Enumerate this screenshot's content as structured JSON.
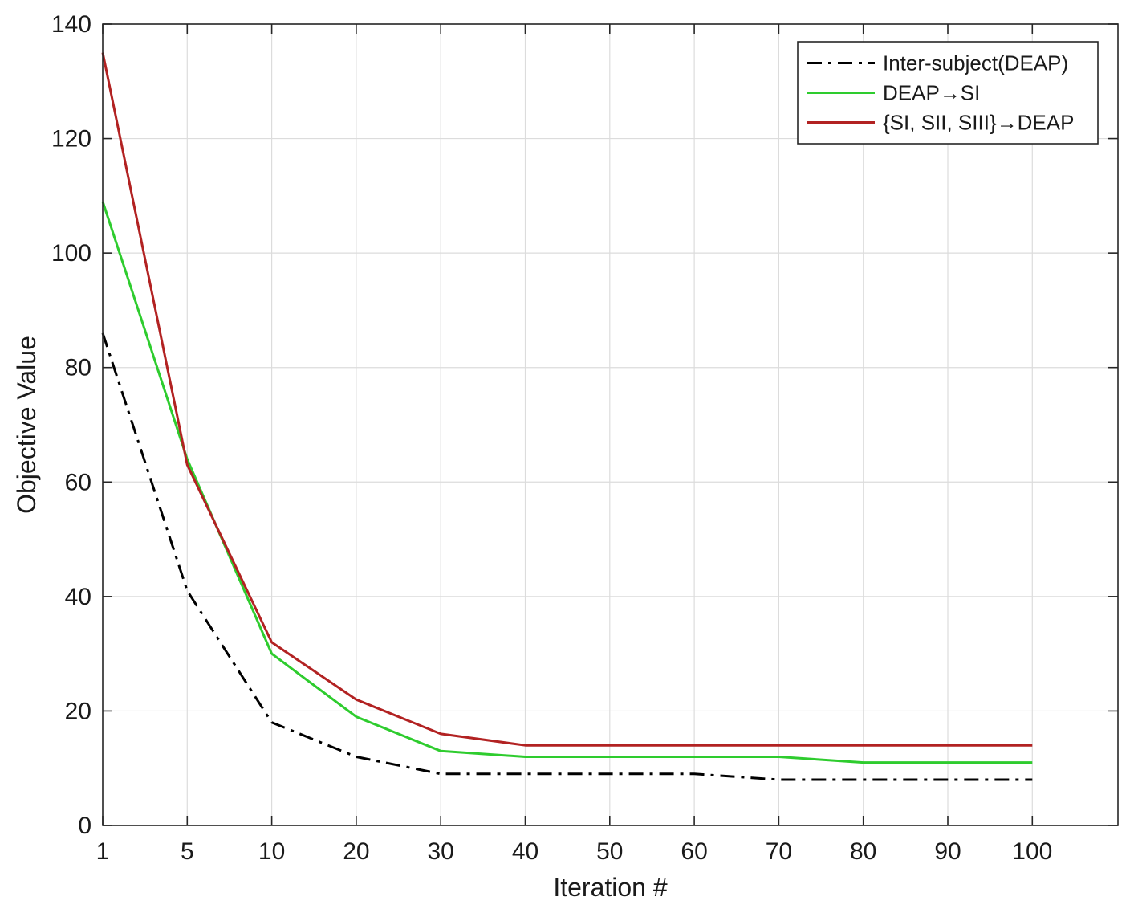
{
  "chart_data": {
    "type": "line",
    "xlabel": "Iteration #",
    "ylabel": "Objective Value",
    "categories": [
      "1",
      "5",
      "10",
      "20",
      "30",
      "40",
      "50",
      "60",
      "70",
      "80",
      "90",
      "100"
    ],
    "ylim": [
      0,
      140
    ],
    "yticks": [
      0,
      20,
      40,
      60,
      80,
      100,
      120,
      140
    ],
    "grid": true,
    "legend_position": "top-right",
    "series": [
      {
        "name": "Inter-subject(DEAP)",
        "color": "#000000",
        "style": "dash-dot",
        "values": [
          86,
          41,
          18,
          12,
          9,
          9,
          9,
          9,
          8,
          8,
          8,
          8
        ]
      },
      {
        "name": "DEAP→SI",
        "color": "#2ecc2e",
        "style": "solid",
        "values": [
          109,
          64,
          30,
          19,
          13,
          12,
          12,
          12,
          12,
          11,
          11,
          11
        ]
      },
      {
        "name": "{SI, SII, SIII}→DEAP",
        "color": "#b22222",
        "style": "solid",
        "values": [
          135,
          63,
          32,
          22,
          16,
          14,
          14,
          14,
          14,
          14,
          14,
          14
        ]
      }
    ]
  }
}
